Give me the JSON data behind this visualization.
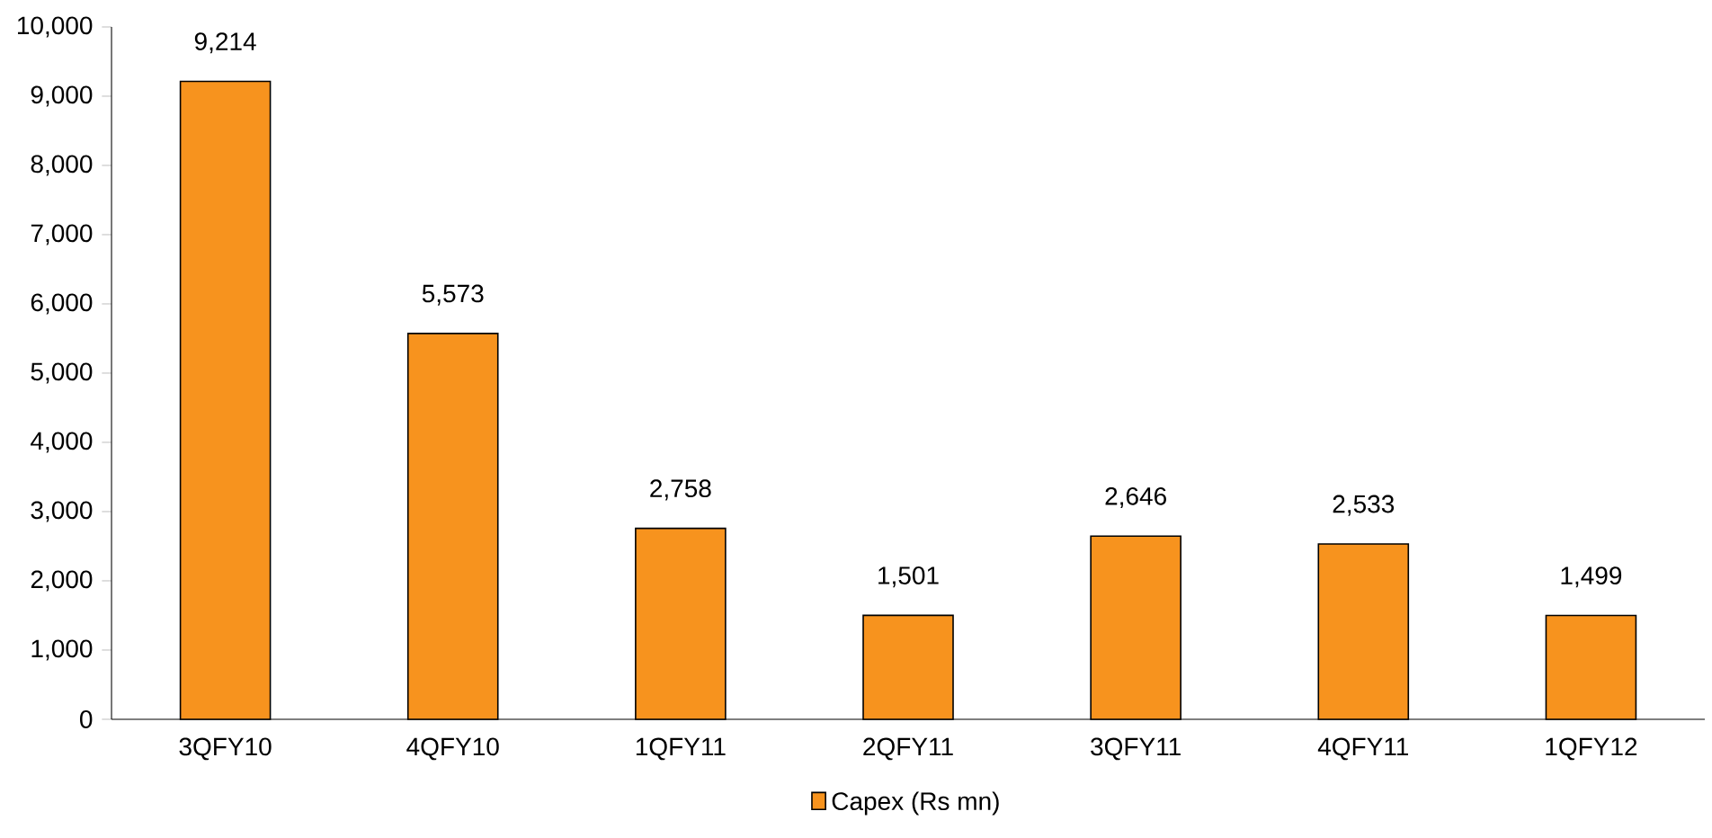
{
  "chart_data": {
    "type": "bar",
    "categories": [
      "3QFY10",
      "4QFY10",
      "1QFY11",
      "2QFY11",
      "3QFY11",
      "4QFY11",
      "1QFY12"
    ],
    "series": [
      {
        "name": "Capex (Rs mn)",
        "color": "#f7931e",
        "values": [
          9214,
          5573,
          2758,
          1501,
          2646,
          2533,
          1499
        ],
        "value_labels": [
          "9,214",
          "5,573",
          "2,758",
          "1,501",
          "2,646",
          "2,533",
          "1,499"
        ]
      }
    ],
    "ylim": [
      0,
      10000
    ],
    "yticks": [
      0,
      {
        "value": 1000,
        "label": "1,000"
      },
      {
        "value": 2000,
        "label": "2,000"
      },
      {
        "value": 3000,
        "label": "3,000"
      },
      {
        "value": 4000,
        "label": "4,000"
      },
      {
        "value": 5000,
        "label": "5,000"
      },
      {
        "value": 6000,
        "label": "6,000"
      },
      {
        "value": 7000,
        "label": "7,000"
      },
      {
        "value": 8000,
        "label": "8,000"
      },
      {
        "value": 9000,
        "label": "9,000"
      },
      {
        "value": 10000,
        "label": "10,000"
      }
    ],
    "grid": false,
    "legend": "bottom"
  }
}
